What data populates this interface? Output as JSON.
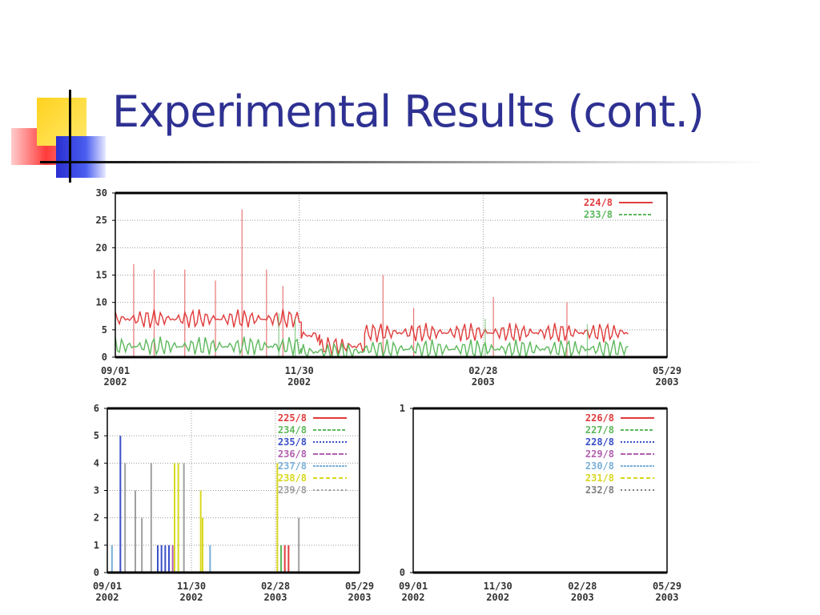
{
  "slide": {
    "title": "Experimental Results (cont.)"
  },
  "chart_data": [
    {
      "type": "line",
      "ylim": [
        0,
        30
      ],
      "yticks": [
        0,
        5,
        10,
        15,
        20,
        25,
        30
      ],
      "xlim": [
        "2002-09-01",
        "2003-05-29"
      ],
      "xticks": [
        {
          "month_day": "09/01",
          "year": "2002"
        },
        {
          "month_day": "11/30",
          "year": "2002"
        },
        {
          "month_day": "02/28",
          "year": "2003"
        },
        {
          "month_day": "05/29",
          "year": "2003"
        }
      ],
      "grid": true,
      "legend_position": "top-right",
      "series": [
        {
          "name": "224/8",
          "color": "#e03c3c",
          "segments": [
            {
              "from": "2002-09-01",
              "to": "2002-12-01",
              "baseline": 7
            },
            {
              "from": "2002-12-01",
              "to": "2002-12-10",
              "baseline": 4
            },
            {
              "from": "2002-12-10",
              "to": "2003-01-01",
              "baseline": 2
            },
            {
              "from": "2003-01-01",
              "to": "2003-02-01",
              "baseline": 4.5
            },
            {
              "from": "2003-02-01",
              "to": "2003-05-10",
              "baseline": 4.5
            }
          ],
          "spikes": [
            {
              "x": "2002-09-10",
              "y": 17
            },
            {
              "x": "2002-09-20",
              "y": 16
            },
            {
              "x": "2002-10-05",
              "y": 16
            },
            {
              "x": "2002-10-20",
              "y": 14
            },
            {
              "x": "2002-11-02",
              "y": 27
            },
            {
              "x": "2002-11-14",
              "y": 16
            },
            {
              "x": "2002-11-22",
              "y": 13
            },
            {
              "x": "2003-01-10",
              "y": 15
            },
            {
              "x": "2003-01-25",
              "y": 9
            },
            {
              "x": "2003-03-05",
              "y": 11
            },
            {
              "x": "2003-04-10",
              "y": 10
            }
          ]
        },
        {
          "name": "233/8",
          "color": "#5cb85c",
          "segments": [
            {
              "from": "2002-09-01",
              "to": "2002-12-01",
              "baseline": 2
            },
            {
              "from": "2002-12-01",
              "to": "2003-01-01",
              "baseline": 1
            },
            {
              "from": "2003-01-01",
              "to": "2003-05-10",
              "baseline": 1.5
            }
          ],
          "spikes": [
            {
              "x": "2002-11-20",
              "y": 8
            },
            {
              "x": "2002-11-28",
              "y": 7
            },
            {
              "x": "2003-03-01",
              "y": 7
            },
            {
              "x": "2003-04-20",
              "y": 6
            }
          ]
        }
      ]
    },
    {
      "type": "bar",
      "ylim": [
        0,
        6
      ],
      "yticks": [
        0,
        1,
        2,
        3,
        4,
        5,
        6
      ],
      "xlim": [
        "2002-09-01",
        "2003-05-29"
      ],
      "xticks": [
        {
          "month_day": "09/01",
          "year": "2002"
        },
        {
          "month_day": "11/30",
          "year": "2002"
        },
        {
          "month_day": "02/28",
          "year": "2003"
        },
        {
          "month_day": "05/29",
          "year": "2003"
        }
      ],
      "grid": true,
      "legend_position": "top-right",
      "series": [
        {
          "name": "225/8",
          "color": "#e03c3c",
          "events": [
            {
              "x": "2003-03-10",
              "y": 1
            },
            {
              "x": "2003-03-14",
              "y": 1
            }
          ]
        },
        {
          "name": "234/8",
          "color": "#5cb85c",
          "events": [
            {
              "x": "2003-03-06",
              "y": 1
            }
          ]
        },
        {
          "name": "235/8",
          "color": "#3a4fc8",
          "events": [
            {
              "x": "2002-09-15",
              "y": 5
            },
            {
              "x": "2002-10-25",
              "y": 1
            },
            {
              "x": "2002-10-29",
              "y": 1
            },
            {
              "x": "2002-11-02",
              "y": 1
            },
            {
              "x": "2002-11-06",
              "y": 1
            }
          ]
        },
        {
          "name": "236/8",
          "color": "#b060b0",
          "events": [
            {
              "x": "2002-11-10",
              "y": 1
            }
          ]
        },
        {
          "name": "237/8",
          "color": "#7ab0d8",
          "events": [
            {
              "x": "2002-09-06",
              "y": 1
            },
            {
              "x": "2002-12-20",
              "y": 1
            }
          ]
        },
        {
          "name": "238/8",
          "color": "#d8d820",
          "events": [
            {
              "x": "2002-11-12",
              "y": 4
            },
            {
              "x": "2002-11-16",
              "y": 4
            },
            {
              "x": "2002-12-10",
              "y": 3
            },
            {
              "x": "2002-12-12",
              "y": 2
            },
            {
              "x": "2003-03-02",
              "y": 4
            }
          ]
        },
        {
          "name": "239/8",
          "color": "#a0a0a0",
          "events": [
            {
              "x": "2002-09-20",
              "y": 4
            },
            {
              "x": "2002-10-01",
              "y": 3
            },
            {
              "x": "2002-10-08",
              "y": 2
            },
            {
              "x": "2002-10-18",
              "y": 4
            },
            {
              "x": "2002-11-22",
              "y": 4
            },
            {
              "x": "2003-03-25",
              "y": 2
            }
          ]
        }
      ]
    },
    {
      "type": "line",
      "ylim": [
        0,
        1
      ],
      "yticks": [
        0,
        1
      ],
      "xlim": [
        "2002-09-01",
        "2003-05-29"
      ],
      "xticks": [
        {
          "month_day": "09/01",
          "year": "2002"
        },
        {
          "month_day": "11/30",
          "year": "2002"
        },
        {
          "month_day": "02/28",
          "year": "2003"
        },
        {
          "month_day": "05/29",
          "year": "2003"
        }
      ],
      "grid": false,
      "legend_position": "top-right",
      "series": [
        {
          "name": "226/8",
          "color": "#e03c3c"
        },
        {
          "name": "227/8",
          "color": "#5cb85c"
        },
        {
          "name": "228/8",
          "color": "#3a4fc8"
        },
        {
          "name": "229/8",
          "color": "#b060b0"
        },
        {
          "name": "230/8",
          "color": "#7ab0d8"
        },
        {
          "name": "231/8",
          "color": "#d8d820"
        },
        {
          "name": "232/8",
          "color": "#808080"
        }
      ]
    }
  ]
}
